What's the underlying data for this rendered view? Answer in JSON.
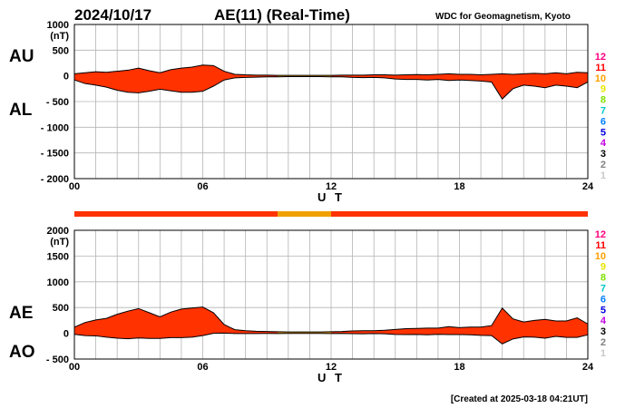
{
  "header": {
    "date": "2024/10/17",
    "title": "AE(11) (Real-Time)",
    "source": "WDC for Geomagnetism, Kyoto"
  },
  "footer": {
    "created": "[Created at 2025-03-18 04:21UT]"
  },
  "colors": {
    "fill": "#ff3200",
    "low_coverage_fill": "#f0a000",
    "outline": "#000000",
    "grid": "#b4b4b4"
  },
  "station_scale": {
    "labels": [
      "12",
      "11",
      "10",
      "9",
      "8",
      "7",
      "6",
      "5",
      "4",
      "3",
      "2",
      "1"
    ],
    "colors": [
      "#ff0080",
      "#ff0000",
      "#ffa000",
      "#e6e600",
      "#80e000",
      "#00c8c8",
      "#0080ff",
      "#0000e0",
      "#c000e0",
      "#000000",
      "#808080",
      "#c8c8c8"
    ]
  },
  "chart_data": [
    {
      "type": "area",
      "panel": "AU/AL",
      "labels_upper": "AU",
      "labels_lower": "AL",
      "unit": "(nT)",
      "xlabel": "U T",
      "xlim": [
        0,
        24
      ],
      "ylim": [
        -2000,
        1000
      ],
      "yticks": [
        1000,
        500,
        0,
        -500,
        -1000,
        -1500,
        -2000
      ],
      "ytick_labels": [
        "1000",
        "500",
        "0",
        "- 500",
        "- 1000",
        "- 1500",
        "- 2000"
      ],
      "xticks": [
        0,
        6,
        12,
        18,
        24
      ],
      "xtick_labels": [
        "00",
        "06",
        "12",
        "18",
        "24"
      ],
      "series": [
        {
          "name": "AU",
          "x": [
            0,
            0.5,
            1,
            1.5,
            2,
            2.5,
            3,
            3.5,
            4,
            4.5,
            5,
            5.5,
            6,
            6.5,
            7,
            7.5,
            8,
            8.5,
            9,
            9.5,
            10,
            10.5,
            11,
            11.5,
            12,
            12.5,
            13,
            13.5,
            14,
            14.5,
            15,
            15.5,
            16,
            16.5,
            17,
            17.5,
            18,
            18.5,
            19,
            19.5,
            20,
            20.5,
            21,
            21.5,
            22,
            22.5,
            23,
            23.5,
            24
          ],
          "values": [
            40,
            60,
            80,
            70,
            90,
            110,
            150,
            100,
            60,
            120,
            150,
            170,
            210,
            200,
            90,
            30,
            20,
            15,
            15,
            10,
            10,
            10,
            10,
            10,
            10,
            15,
            15,
            15,
            20,
            20,
            15,
            20,
            25,
            20,
            30,
            40,
            30,
            30,
            20,
            30,
            40,
            30,
            40,
            50,
            40,
            60,
            40,
            70,
            60
          ]
        },
        {
          "name": "AL",
          "x": [
            0,
            0.5,
            1,
            1.5,
            2,
            2.5,
            3,
            3.5,
            4,
            4.5,
            5,
            5.5,
            6,
            6.5,
            7,
            7.5,
            8,
            8.5,
            9,
            9.5,
            10,
            10.5,
            11,
            11.5,
            12,
            12.5,
            13,
            13.5,
            14,
            14.5,
            15,
            15.5,
            16,
            16.5,
            17,
            17.5,
            18,
            18.5,
            19,
            19.5,
            20,
            20.5,
            21,
            21.5,
            22,
            22.5,
            23,
            23.5,
            24
          ],
          "values": [
            -80,
            -150,
            -180,
            -220,
            -280,
            -320,
            -330,
            -300,
            -260,
            -290,
            -320,
            -320,
            -300,
            -200,
            -80,
            -40,
            -30,
            -25,
            -20,
            -20,
            -15,
            -15,
            -15,
            -15,
            -20,
            -20,
            -30,
            -35,
            -30,
            -40,
            -60,
            -70,
            -70,
            -80,
            -70,
            -90,
            -80,
            -90,
            -100,
            -120,
            -450,
            -250,
            -180,
            -200,
            -230,
            -180,
            -200,
            -230,
            -120
          ]
        }
      ]
    },
    {
      "type": "area",
      "panel": "AE/AO",
      "labels_upper": "AE",
      "labels_lower": "AO",
      "unit": "(nT)",
      "xlabel": "U T",
      "xlim": [
        0,
        24
      ],
      "ylim": [
        -500,
        2000
      ],
      "yticks": [
        2000,
        1500,
        1000,
        500,
        0,
        -500
      ],
      "ytick_labels": [
        "2000",
        "1500",
        "1000",
        "500",
        "0",
        "- 500"
      ],
      "xticks": [
        0,
        6,
        12,
        18,
        24
      ],
      "xtick_labels": [
        "00",
        "06",
        "12",
        "18",
        "24"
      ],
      "series": [
        {
          "name": "AE",
          "x": [
            0,
            0.5,
            1,
            1.5,
            2,
            2.5,
            3,
            3.5,
            4,
            4.5,
            5,
            5.5,
            6,
            6.5,
            7,
            7.5,
            8,
            8.5,
            9,
            9.5,
            10,
            10.5,
            11,
            11.5,
            12,
            12.5,
            13,
            13.5,
            14,
            14.5,
            15,
            15.5,
            16,
            16.5,
            17,
            17.5,
            18,
            18.5,
            19,
            19.5,
            20,
            20.5,
            21,
            21.5,
            22,
            22.5,
            23,
            23.5,
            24
          ],
          "values": [
            120,
            210,
            260,
            290,
            370,
            430,
            480,
            400,
            320,
            410,
            470,
            490,
            510,
            400,
            170,
            70,
            50,
            40,
            35,
            30,
            25,
            25,
            25,
            25,
            30,
            35,
            45,
            50,
            50,
            60,
            75,
            90,
            95,
            100,
            100,
            130,
            110,
            120,
            120,
            150,
            490,
            280,
            220,
            250,
            270,
            240,
            240,
            300,
            180
          ]
        },
        {
          "name": "AO",
          "x": [
            0,
            0.5,
            1,
            1.5,
            2,
            2.5,
            3,
            3.5,
            4,
            4.5,
            5,
            5.5,
            6,
            6.5,
            7,
            7.5,
            8,
            8.5,
            9,
            9.5,
            10,
            10.5,
            11,
            11.5,
            12,
            12.5,
            13,
            13.5,
            14,
            14.5,
            15,
            15.5,
            16,
            16.5,
            17,
            17.5,
            18,
            18.5,
            19,
            19.5,
            20,
            20.5,
            21,
            21.5,
            22,
            22.5,
            23,
            23.5,
            24
          ],
          "values": [
            -20,
            -45,
            -50,
            -75,
            -95,
            -105,
            -90,
            -100,
            -100,
            -85,
            -85,
            -75,
            -45,
            0,
            5,
            -5,
            -5,
            -5,
            -3,
            -5,
            -3,
            -3,
            -3,
            -3,
            -5,
            -3,
            -8,
            -10,
            -5,
            -10,
            -23,
            -25,
            -23,
            -30,
            -20,
            -25,
            -25,
            -30,
            -40,
            -45,
            -205,
            -110,
            -70,
            -75,
            -95,
            -60,
            -80,
            -80,
            -30
          ]
        }
      ]
    }
  ],
  "coverage_bar": {
    "segments": [
      {
        "start": 0,
        "end": 9.5,
        "level": "full"
      },
      {
        "start": 9.5,
        "end": 12,
        "level": "low"
      },
      {
        "start": 12,
        "end": 24,
        "level": "full"
      }
    ]
  }
}
